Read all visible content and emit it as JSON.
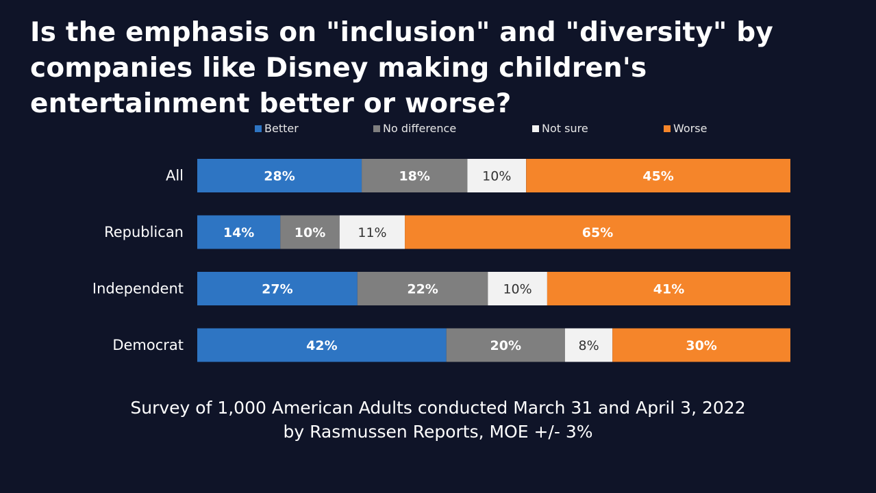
{
  "title": "Is the emphasis on \"inclusion\" and \"diversity\" by companies like Disney making children's entertainment better or worse?",
  "footer": {
    "line1": "Survey of 1,000 American Adults conducted March 31 and April 3, 2022",
    "line2": "by Rasmussen Reports, MOE +/- 3%"
  },
  "chart_data": {
    "type": "bar",
    "orientation": "horizontal",
    "stacked": true,
    "categories": [
      "All",
      "Republican",
      "Independent",
      "Democrat"
    ],
    "series": [
      {
        "name": "Better",
        "color": "#2e75c3",
        "values": [
          28,
          14,
          27,
          42
        ],
        "labels": [
          "28%",
          "14%",
          "27%",
          "42%"
        ]
      },
      {
        "name": "No difference",
        "color": "#7f7f7f",
        "values": [
          18,
          10,
          22,
          20
        ],
        "labels": [
          "18%",
          "10%",
          "22%",
          "20%"
        ]
      },
      {
        "name": "Not sure",
        "color": "#f2f2f2",
        "values": [
          10,
          11,
          10,
          8
        ],
        "labels": [
          "10%",
          "11%",
          "10%",
          "8%"
        ]
      },
      {
        "name": "Worse",
        "color": "#f5852a",
        "values": [
          45,
          65,
          41,
          30
        ],
        "labels": [
          "45%",
          "65%",
          "41%",
          "30%"
        ]
      }
    ],
    "legend_position": "top",
    "grid": false
  }
}
